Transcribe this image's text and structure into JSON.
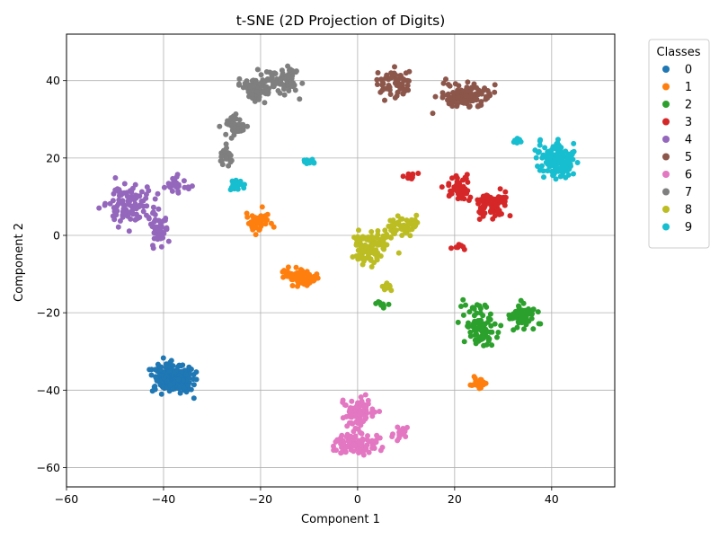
{
  "chart_data": {
    "type": "scatter",
    "title": "t-SNE (2D Projection of Digits)",
    "xlabel": "Component 1",
    "ylabel": "Component 2",
    "xlim": [
      -60,
      53
    ],
    "ylim": [
      -65,
      52
    ],
    "xticks": [
      -60,
      -40,
      -20,
      0,
      20,
      40
    ],
    "yticks": [
      -60,
      -40,
      -20,
      0,
      20,
      40
    ],
    "grid": true,
    "legend": {
      "title": "Classes",
      "placement": "outside-right"
    },
    "series": [
      {
        "name": "0",
        "color": "#1f77b4",
        "clusters": [
          [
            -38,
            -37,
            4.2,
            3.6,
            200
          ]
        ]
      },
      {
        "name": "1",
        "color": "#ff7f0e",
        "clusters": [
          [
            -20.5,
            3.5,
            2.2,
            2.3,
            45
          ],
          [
            -12,
            -10.5,
            3.5,
            2.0,
            80
          ],
          [
            25,
            -38,
            1.6,
            1.3,
            25
          ]
        ]
      },
      {
        "name": "2",
        "color": "#2ca02c",
        "clusters": [
          [
            25,
            -23,
            3.0,
            5.5,
            90
          ],
          [
            34,
            -21,
            3.2,
            2.8,
            70
          ],
          [
            5,
            -18,
            1.3,
            0.6,
            10
          ]
        ]
      },
      {
        "name": "3",
        "color": "#d62728",
        "clusters": [
          [
            21,
            12,
            2.6,
            2.8,
            55
          ],
          [
            28,
            8,
            3.2,
            3.2,
            85
          ],
          [
            11,
            15,
            2.0,
            1.0,
            14
          ],
          [
            21,
            -3,
            1.2,
            0.8,
            8
          ]
        ]
      },
      {
        "name": "4",
        "color": "#9467bd",
        "clusters": [
          [
            -47,
            8,
            4.5,
            4.5,
            110
          ],
          [
            -41,
            2,
            2.3,
            3.5,
            40
          ],
          [
            -37,
            13,
            2.5,
            2.0,
            25
          ]
        ]
      },
      {
        "name": "5",
        "color": "#8c564b",
        "clusters": [
          [
            8,
            39,
            3.2,
            3.2,
            60
          ],
          [
            22,
            36,
            5.0,
            2.8,
            120
          ]
        ]
      },
      {
        "name": "6",
        "color": "#e377c2",
        "clusters": [
          [
            0,
            -46,
            3.0,
            3.5,
            90
          ],
          [
            0,
            -54,
            4.0,
            2.5,
            90
          ],
          [
            9,
            -51,
            1.6,
            1.3,
            18
          ]
        ]
      },
      {
        "name": "7",
        "color": "#7f7f7f",
        "clusters": [
          [
            -21,
            38,
            3.0,
            3.3,
            90
          ],
          [
            -15,
            40,
            2.8,
            3.0,
            70
          ],
          [
            -25,
            28,
            2.2,
            2.2,
            40
          ],
          [
            -27,
            21,
            1.0,
            2.5,
            20
          ]
        ]
      },
      {
        "name": "8",
        "color": "#bcbd22",
        "clusters": [
          [
            3,
            -3,
            3.5,
            3.5,
            110
          ],
          [
            10,
            3,
            2.8,
            2.8,
            50
          ],
          [
            6,
            -13,
            1.0,
            1.0,
            10
          ]
        ]
      },
      {
        "name": "9",
        "color": "#17becf",
        "clusters": [
          [
            41,
            19,
            3.8,
            4.0,
            140
          ],
          [
            -25,
            13,
            1.3,
            1.3,
            25
          ],
          [
            -10,
            19,
            1.3,
            0.6,
            12
          ],
          [
            33,
            24,
            1.2,
            1.2,
            10
          ]
        ]
      }
    ]
  }
}
